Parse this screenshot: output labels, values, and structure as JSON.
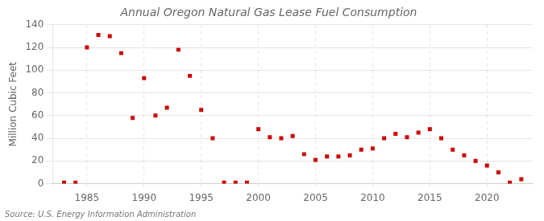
{
  "chart_data": {
    "type": "scatter",
    "title": "Annual Oregon Natural Gas Lease Fuel Consumption",
    "ylabel": "Million Cubic Feet",
    "annotations": [
      "Source: U.S. Energy Information Administration"
    ],
    "x": [
      1983,
      1984,
      1985,
      1986,
      1987,
      1988,
      1989,
      1990,
      1991,
      1992,
      1993,
      1994,
      1995,
      1996,
      1997,
      1998,
      1999,
      2000,
      2001,
      2002,
      2003,
      2004,
      2005,
      2006,
      2007,
      2008,
      2009,
      2010,
      2011,
      2012,
      2013,
      2014,
      2015,
      2016,
      2017,
      2018,
      2019,
      2020,
      2021,
      2022,
      2023
    ],
    "values": [
      1,
      1,
      120,
      131,
      130,
      115,
      58,
      93,
      60,
      67,
      118,
      95,
      65,
      40,
      1,
      1,
      1,
      48,
      41,
      40,
      42,
      26,
      21,
      24,
      24,
      25,
      30,
      31,
      40,
      44,
      41,
      45,
      48,
      40,
      30,
      25,
      20,
      16,
      10,
      1,
      4
    ],
    "color": "#cc0000",
    "marker": "square",
    "xlim": [
      1982,
      2024
    ],
    "xticks": [
      1985,
      1990,
      1995,
      2000,
      2005,
      2010,
      2015,
      2020
    ],
    "ylim": [
      0,
      140
    ],
    "yticks": [
      0,
      20,
      40,
      60,
      80,
      100,
      120,
      140
    ],
    "grid": true
  }
}
